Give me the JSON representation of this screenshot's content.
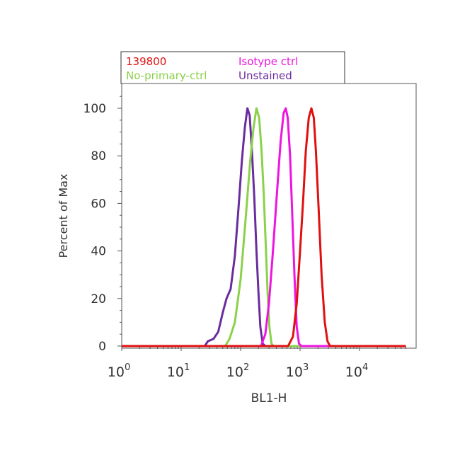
{
  "chart_data": {
    "type": "line",
    "xlabel": "BL1-H",
    "ylabel": "Percent of Max",
    "x_scale": "log",
    "xlim": [
      1,
      60000
    ],
    "ylim": [
      0,
      110
    ],
    "x_ticks": [
      {
        "value": 1,
        "base": "10",
        "exp": "0"
      },
      {
        "value": 10,
        "base": "10",
        "exp": "1"
      },
      {
        "value": 100,
        "base": "10",
        "exp": "2"
      },
      {
        "value": 1000,
        "base": "10",
        "exp": "3"
      },
      {
        "value": 10000,
        "base": "10",
        "exp": "4"
      }
    ],
    "y_ticks": [
      0,
      20,
      40,
      60,
      80,
      100
    ],
    "y_tick_labels": [
      "0",
      "20",
      "40",
      "60",
      "80",
      "100"
    ],
    "grid": false,
    "legend_position": "top",
    "series": [
      {
        "name": "Unstained",
        "color": "#6a2c9e",
        "points": [
          [
            1,
            0
          ],
          [
            25,
            0
          ],
          [
            28,
            2
          ],
          [
            35,
            3
          ],
          [
            42,
            6
          ],
          [
            50,
            14
          ],
          [
            58,
            20
          ],
          [
            68,
            24
          ],
          [
            80,
            38
          ],
          [
            92,
            58
          ],
          [
            105,
            78
          ],
          [
            118,
            92
          ],
          [
            130,
            100
          ],
          [
            142,
            97
          ],
          [
            155,
            82
          ],
          [
            170,
            62
          ],
          [
            185,
            40
          ],
          [
            200,
            22
          ],
          [
            215,
            8
          ],
          [
            235,
            1
          ],
          [
            260,
            0
          ],
          [
            60000,
            0
          ]
        ]
      },
      {
        "name": "No-primary-ctrl",
        "color": "#8bd14a",
        "points": [
          [
            1,
            0
          ],
          [
            55,
            0
          ],
          [
            65,
            3
          ],
          [
            80,
            10
          ],
          [
            100,
            28
          ],
          [
            120,
            52
          ],
          [
            145,
            78
          ],
          [
            165,
            92
          ],
          [
            185,
            100
          ],
          [
            205,
            96
          ],
          [
            225,
            82
          ],
          [
            245,
            64
          ],
          [
            265,
            42
          ],
          [
            285,
            22
          ],
          [
            305,
            8
          ],
          [
            330,
            1
          ],
          [
            360,
            0
          ],
          [
            60000,
            0
          ]
        ]
      },
      {
        "name": "Isotype ctrl",
        "color": "#ee14e0",
        "points": [
          [
            1,
            0
          ],
          [
            220,
            0
          ],
          [
            260,
            5
          ],
          [
            300,
            18
          ],
          [
            350,
            40
          ],
          [
            410,
            65
          ],
          [
            470,
            86
          ],
          [
            530,
            98
          ],
          [
            575,
            100
          ],
          [
            620,
            96
          ],
          [
            680,
            80
          ],
          [
            740,
            55
          ],
          [
            810,
            28
          ],
          [
            880,
            8
          ],
          [
            960,
            1
          ],
          [
            1050,
            0
          ],
          [
            60000,
            0
          ]
        ]
      },
      {
        "name": "139800",
        "color": "#e01010",
        "points": [
          [
            1,
            0
          ],
          [
            630,
            0
          ],
          [
            760,
            4
          ],
          [
            880,
            18
          ],
          [
            1000,
            40
          ],
          [
            1120,
            60
          ],
          [
            1250,
            82
          ],
          [
            1400,
            96
          ],
          [
            1550,
            100
          ],
          [
            1700,
            96
          ],
          [
            1850,
            82
          ],
          [
            2050,
            58
          ],
          [
            2300,
            30
          ],
          [
            2600,
            10
          ],
          [
            2900,
            2
          ],
          [
            3200,
            0
          ],
          [
            60000,
            0
          ]
        ]
      }
    ]
  }
}
